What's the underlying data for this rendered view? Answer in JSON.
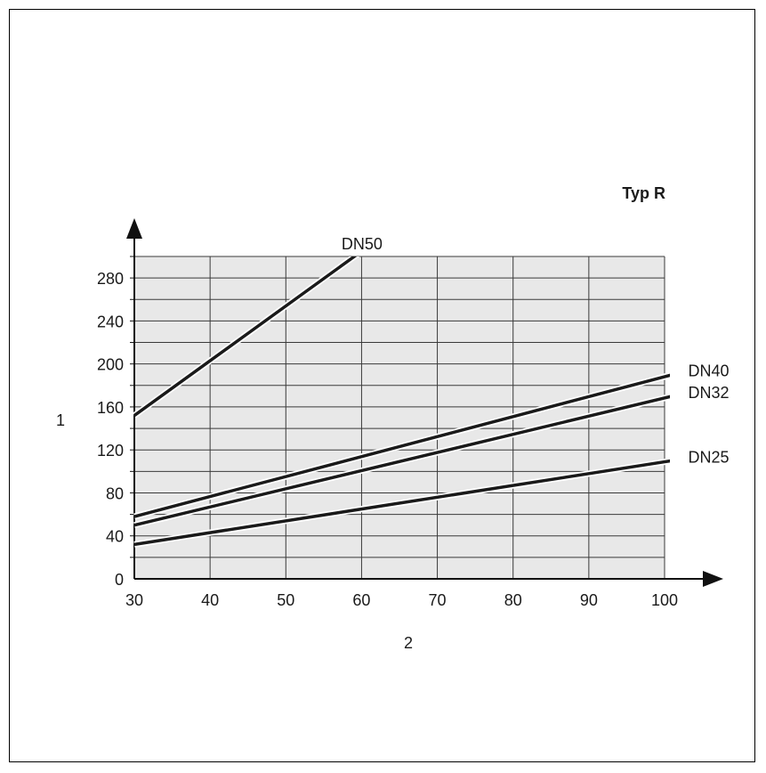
{
  "chart_data": {
    "type": "line",
    "title": "Typ R",
    "xlabel": "2",
    "ylabel": "1",
    "xlim": [
      30,
      100
    ],
    "ylim": [
      0,
      300
    ],
    "xticks": [
      30,
      40,
      50,
      60,
      70,
      80,
      90,
      100
    ],
    "yticks": [
      0,
      40,
      80,
      120,
      160,
      200,
      240,
      280
    ],
    "grid": true,
    "series": [
      {
        "name": "DN50",
        "x": [
          30,
          61
        ],
        "y": [
          152,
          310
        ]
      },
      {
        "name": "DN40",
        "x": [
          30,
          101
        ],
        "y": [
          58,
          190
        ]
      },
      {
        "name": "DN32",
        "x": [
          30,
          101
        ],
        "y": [
          50,
          170
        ]
      },
      {
        "name": "DN25",
        "x": [
          30,
          101
        ],
        "y": [
          32,
          110
        ]
      }
    ]
  },
  "colors": {
    "plot_bg": "#e8e8e8",
    "grid": "#3a3a3a",
    "line": "#1a1a1a"
  }
}
